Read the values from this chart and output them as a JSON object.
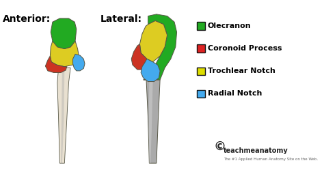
{
  "bg_color": "#ffffff",
  "anterior_label": "Anterior:",
  "lateral_label": "Lateral:",
  "legend_items": [
    {
      "label": "Olecranon",
      "color": "#22aa22"
    },
    {
      "label": "Coronoid Process",
      "color": "#dd2222"
    },
    {
      "label": "Trochlear Notch",
      "color": "#dddd00"
    },
    {
      "label": "Radial Notch",
      "color": "#44aaee"
    }
  ],
  "watermark": "teachmeanatomy",
  "watermark_sub": "The #1 Applied Human Anatomy Site on the Web.",
  "label_fontsize": 10,
  "legend_fontsize": 8.0,
  "col_green": "#22aa22",
  "col_red": "#cc3322",
  "col_yellow": "#ddcc22",
  "col_blue": "#44aaee",
  "col_bone_light": "#e8e0d0",
  "col_bone_gray": "#aaaaaa",
  "col_edge": "#555544"
}
